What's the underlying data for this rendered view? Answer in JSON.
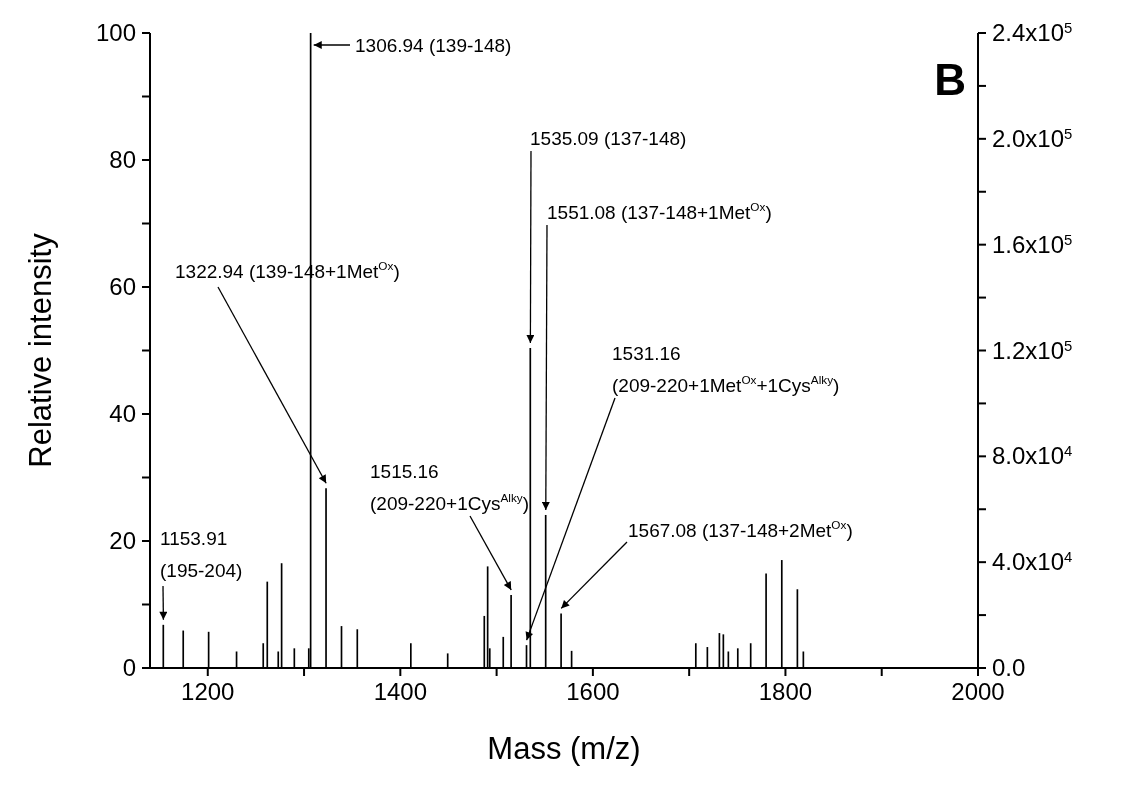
{
  "chart_data": {
    "type": "bar",
    "xlabel": "Mass (m/z)",
    "ylabel": "Relative intensity",
    "x": [
      1153.91,
      1174.6,
      1201,
      1230,
      1257.7,
      1261.9,
      1273.3,
      1276.8,
      1290,
      1305,
      1306.94,
      1322.94,
      1339,
      1355.4,
      1411,
      1449.3,
      1487.3,
      1490.8,
      1493,
      1507,
      1515.16,
      1531.16,
      1535.09,
      1551.08,
      1567.08,
      1578,
      1707,
      1719,
      1731.5,
      1735.6,
      1740.8,
      1750.6,
      1764,
      1780,
      1796.3,
      1812.5,
      1818.7
    ],
    "values": [
      6.8,
      5.9,
      5.7,
      2.6,
      3.9,
      13.6,
      2.6,
      16.5,
      3.1,
      3.1,
      100,
      28.3,
      6.6,
      6.1,
      3.9,
      2.3,
      8.2,
      16.0,
      3.1,
      4.9,
      11.5,
      3.6,
      50.4,
      24.1,
      8.6,
      2.7,
      3.9,
      3.3,
      5.5,
      5.3,
      2.6,
      3.1,
      3.9,
      14.9,
      17.0,
      12.4,
      2.6
    ],
    "color": "#000000",
    "xlim": [
      1140,
      2000
    ],
    "xticks": [
      1200,
      {
        "value": 1300,
        "label": null
      },
      1400,
      {
        "value": 1500,
        "label": null
      },
      1600,
      {
        "value": 1700,
        "label": null
      },
      1800,
      {
        "value": 1900,
        "label": null
      },
      2000
    ],
    "ylim": [
      0,
      100
    ],
    "yticks": [
      0,
      {
        "value": 10,
        "label": null
      },
      20,
      {
        "value": 30,
        "label": null
      },
      40,
      {
        "value": 50,
        "label": null
      },
      60,
      {
        "value": 70,
        "label": null
      },
      80,
      {
        "value": 90,
        "label": null
      },
      100
    ],
    "y2lim": [
      0,
      240000
    ],
    "y2ticks": [
      {
        "value": 0,
        "label": "0.0"
      },
      {
        "value": 20000,
        "label": null
      },
      {
        "value": 40000,
        "label": "4.0x10$^{4}$"
      },
      {
        "value": 60000,
        "label": null
      },
      {
        "value": 80000,
        "label": "8.0x10$^{4}$"
      },
      {
        "value": 100000,
        "label": null
      },
      {
        "value": 120000,
        "label": "1.2x10$^{5}$"
      },
      {
        "value": 140000,
        "label": null
      },
      {
        "value": 160000,
        "label": "1.6x10$^{5}$"
      },
      {
        "value": 180000,
        "label": null
      },
      {
        "value": 200000,
        "label": "2.0x10$^{5}$"
      },
      {
        "value": 220000,
        "label": null
      },
      {
        "value": 240000,
        "label": "2.4x10$^{5}$"
      }
    ],
    "annotations": [
      {
        "text": "1153.91\n(195-204)",
        "x": 1153.91,
        "y": 6.8
      },
      {
        "text": "1306.94 (139-148)",
        "x": 1306.94,
        "y": 100
      },
      {
        "text": "1322.94 (139-148+1Met$^{Ox}$)",
        "x": 1322.94,
        "y": 28.3
      },
      {
        "text": "1515.16\n(209-220+1Cys$^{Alky}$)",
        "x": 1515.16,
        "y": 11.5
      },
      {
        "text": "1535.09 (137-148)",
        "x": 1535.09,
        "y": 50.4
      },
      {
        "text": "1551.08 (137-148+1Met$^{Ox}$)",
        "x": 1551.08,
        "y": 24.1
      },
      {
        "text": "1531.16\n(209-220+1Met$^{Ox}$+1Cys$^{Alky}$)",
        "x": 1531.16,
        "y": 3.6
      },
      {
        "text": "1567.08 (137-148+2Met$^{Ox}$)",
        "x": 1567.08,
        "y": 8.6
      },
      "B"
    ]
  }
}
